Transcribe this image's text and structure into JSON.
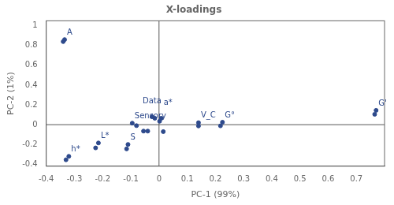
{
  "chart_data": {
    "type": "scatter",
    "title": "X-loadings",
    "xlabel": "PC-1 (99%)",
    "ylabel": "PC-2 (1%)",
    "xlim": [
      -0.4,
      0.8
    ],
    "ylim": [
      -0.42,
      1.05
    ],
    "xticks": [
      -0.4,
      -0.3,
      -0.2,
      -0.1,
      0,
      0.1,
      0.2,
      0.3,
      0.4,
      0.5,
      0.6,
      0.7
    ],
    "yticks": [
      -0.4,
      -0.2,
      0,
      0.2,
      0.4,
      0.6,
      0.8,
      1.0
    ],
    "grid": false,
    "color": "#2e4a8c",
    "x": [
      -0.335,
      -0.34,
      -0.32,
      -0.33,
      -0.215,
      -0.225,
      -0.11,
      -0.115,
      -0.095,
      -0.08,
      -0.055,
      -0.025,
      -0.015,
      0.008,
      0.002,
      -0.04,
      0.015,
      0.14,
      0.14,
      0.225,
      0.218,
      0.77,
      0.765
    ],
    "y": [
      0.86,
      0.84,
      -0.32,
      -0.355,
      -0.185,
      -0.235,
      -0.2,
      -0.245,
      0.015,
      -0.01,
      -0.065,
      0.08,
      0.065,
      0.065,
      0.035,
      -0.065,
      -0.07,
      0.02,
      -0.013,
      0.025,
      -0.012,
      0.145,
      0.105
    ],
    "annotations": [
      {
        "text": "A",
        "x": -0.335,
        "y": 0.86
      },
      {
        "text": "h*",
        "x": -0.32,
        "y": -0.32
      },
      {
        "text": "L*",
        "x": -0.215,
        "y": -0.185
      },
      {
        "text": "S",
        "x": -0.11,
        "y": -0.2
      },
      {
        "text": "Sensory",
        "x": -0.095,
        "y": 0.015
      },
      {
        "text": "Data",
        "x": -0.025,
        "y": 0.08
      },
      {
        "text": "a*",
        "x": 0.008,
        "y": 0.065
      },
      {
        "text": "V_C",
        "x": 0.14,
        "y": 0.02
      },
      {
        "text": "G°",
        "x": 0.225,
        "y": 0.025
      },
      {
        "text": "G'",
        "x": 0.77,
        "y": 0.145
      }
    ]
  }
}
